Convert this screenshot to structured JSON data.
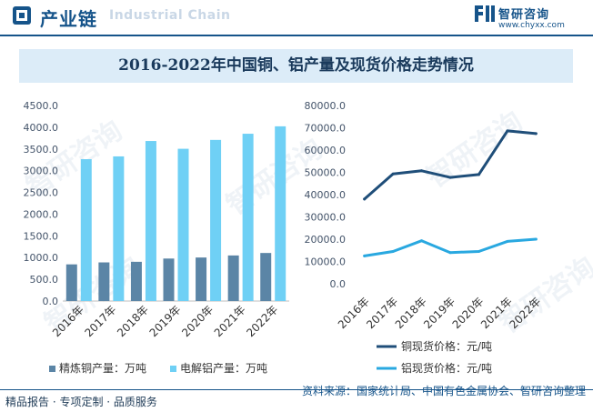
{
  "header": {
    "title": "产业链",
    "subtitle": "Industrial Chain",
    "brand_name": "智研咨询",
    "brand_url": "www.chyxx.com"
  },
  "chart_title": "2016-2022年中国铜、铝产量及现货价格走势情况",
  "footer": {
    "services": "精品报告 · 专项定制 · 品质服务",
    "source": "资料来源：国家统计局、中国有色金属协会、智研咨询整理"
  },
  "watermark": "智研咨询",
  "colors": {
    "copper_bar": "#5b85a6",
    "aluminum_bar": "#6fd0f5",
    "copper_line": "#1f4e79",
    "aluminum_line": "#29a8e0"
  },
  "chart_data": [
    {
      "type": "bar",
      "title": "",
      "categories": [
        "2016年",
        "2017年",
        "2018年",
        "2019年",
        "2020年",
        "2021年",
        "2022年"
      ],
      "series": [
        {
          "name": "精炼铜产量：万吨",
          "values": [
            844,
            889,
            903,
            978,
            1002,
            1049,
            1106
          ]
        },
        {
          "name": "电解铝产量：万吨",
          "values": [
            3265,
            3329,
            3683,
            3504,
            3708,
            3850,
            4021
          ]
        }
      ],
      "ylim": [
        0,
        4500
      ],
      "yticks": [
        "0.0",
        "500.0",
        "1000.0",
        "1500.0",
        "2000.0",
        "2500.0",
        "3000.0",
        "3500.0",
        "4000.0",
        "4500.0"
      ],
      "grid": false,
      "legend": "bottom"
    },
    {
      "type": "line",
      "title": "",
      "categories": [
        "2016年",
        "2017年",
        "2018年",
        "2019年",
        "2020年",
        "2021年",
        "2022年"
      ],
      "series": [
        {
          "name": "铜现货价格：元/吨",
          "values": [
            38000,
            49300,
            50700,
            47700,
            49000,
            68600,
            67400
          ]
        },
        {
          "name": "铝现货价格：元/吨",
          "values": [
            12500,
            14500,
            19300,
            14000,
            14500,
            19000,
            20000
          ]
        }
      ],
      "ylim": [
        0,
        80000
      ],
      "yticks": [
        "0.0",
        "10000.0",
        "20000.0",
        "30000.0",
        "40000.0",
        "50000.0",
        "60000.0",
        "70000.0",
        "80000.0"
      ],
      "grid": false,
      "legend": "bottom"
    }
  ]
}
